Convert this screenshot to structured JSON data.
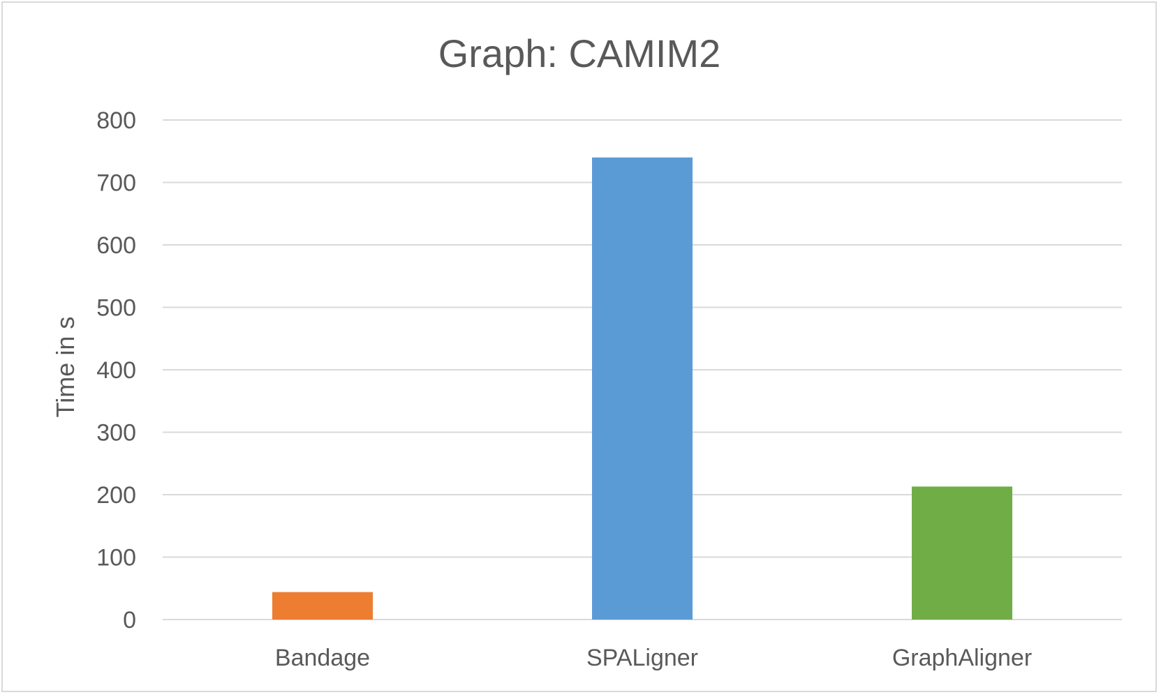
{
  "chart_data": {
    "type": "bar",
    "title": "Graph: CAMIM2",
    "xlabel": "",
    "ylabel": "Time in s",
    "categories": [
      "Bandage",
      "SPALigner",
      "GraphAligner"
    ],
    "values": [
      44,
      740,
      213
    ],
    "colors": [
      "#ED7D31",
      "#5B9BD5",
      "#70AD47"
    ],
    "ylim": [
      0,
      800
    ],
    "yticks": [
      0,
      100,
      200,
      300,
      400,
      500,
      600,
      700,
      800
    ],
    "grid": true,
    "gridlines_color": "#d9d9d9",
    "legend": "none"
  }
}
